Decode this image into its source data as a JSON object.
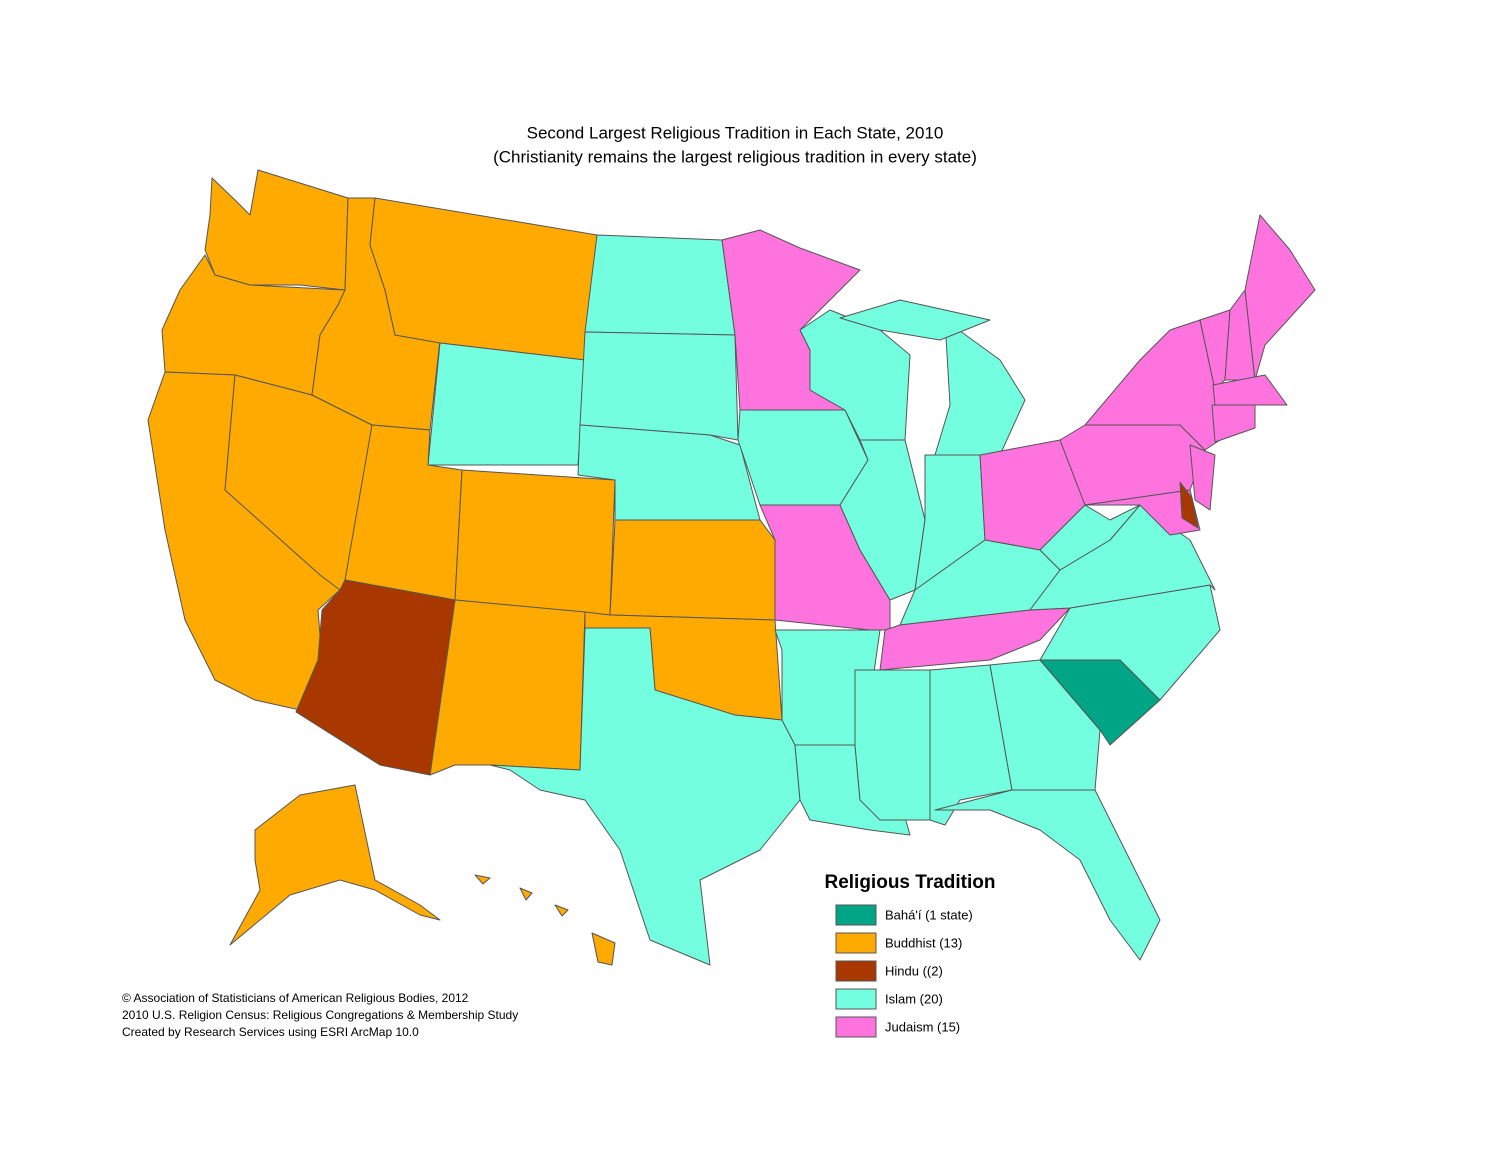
{
  "title": "Second Largest Religious Tradition in Each State, 2010",
  "subtitle": "(Christianity remains the largest religious tradition in every state)",
  "legend": {
    "title": "Religious Tradition",
    "items": [
      {
        "label": "Bahá'í (1 state)",
        "color": "#00a586"
      },
      {
        "label": "Buddhist (13)",
        "color": "#ffaa00"
      },
      {
        "label": "Hindu ((2)",
        "color": "#a83800"
      },
      {
        "label": "Islam (20)",
        "color": "#73ffdf"
      },
      {
        "label": "Judaism (15)",
        "color": "#ff73df"
      }
    ]
  },
  "credits": [
    "© Association of Statisticians of American Religious Bodies, 2012",
    "2010 U.S. Religion Census: Religious Congregations & Membership Study",
    "Created by Research Services using ESRI ArcMap 10.0"
  ]
}
